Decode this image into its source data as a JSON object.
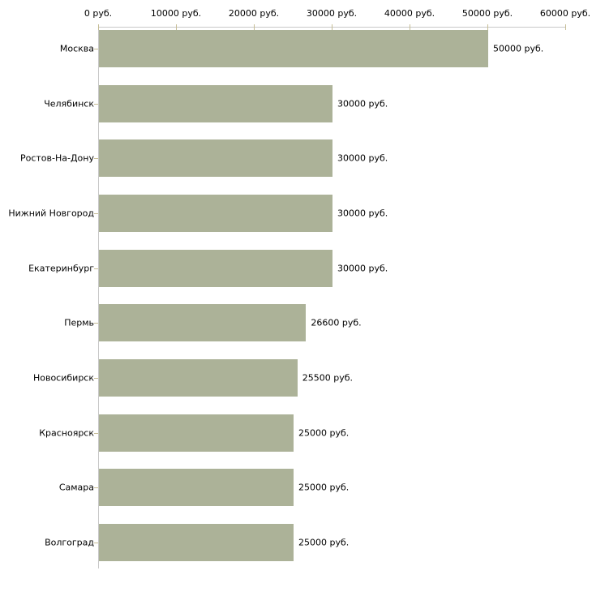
{
  "chart_data": {
    "type": "bar",
    "orientation": "horizontal",
    "title": "",
    "xlabel": "",
    "ylabel": "",
    "categories": [
      "Москва",
      "Челябинск",
      "Ростов-На-Дону",
      "Нижний Новгород",
      "Екатеринбург",
      "Пермь",
      "Новосибирск",
      "Красноярск",
      "Самара",
      "Волгоград"
    ],
    "values": [
      50000,
      30000,
      30000,
      30000,
      30000,
      26600,
      25500,
      25000,
      25000,
      25000
    ],
    "value_labels": [
      "50000 руб.",
      "30000 руб.",
      "30000 руб.",
      "30000 руб.",
      "30000 руб.",
      "26600 руб.",
      "25500 руб.",
      "25000 руб.",
      "25000 руб.",
      "25000 руб."
    ],
    "x_axis": {
      "position": "top",
      "min": 0,
      "max": 60000,
      "ticks": [
        0,
        10000,
        20000,
        30000,
        40000,
        50000,
        60000
      ],
      "tick_labels": [
        "0 руб.",
        "10000 руб.",
        "20000 руб.",
        "30000 руб.",
        "40000 руб.",
        "50000 руб.",
        "60000 руб."
      ]
    },
    "grid": false,
    "legend": false,
    "colors": {
      "bar": "#acb298",
      "axis_line": "#c8c8c8",
      "tick_mark": "#c6bd95",
      "text": "#000000",
      "background": "#ffffff"
    }
  }
}
